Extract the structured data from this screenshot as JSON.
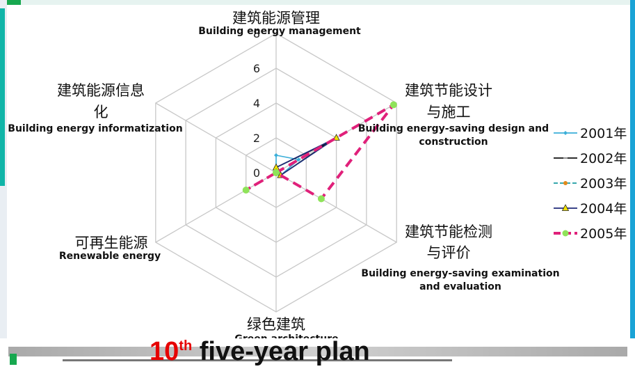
{
  "chart_data": {
    "type": "radar",
    "categories": [
      {
        "cn": "建筑能源管理",
        "en": [
          "Building energy management"
        ]
      },
      {
        "cn": [
          "建筑节能设计",
          "与施工"
        ],
        "en": [
          "Building energy-saving design and",
          "construction"
        ]
      },
      {
        "cn": [
          "建筑节能检测",
          "与评价"
        ],
        "en": [
          "Building energy-saving examination",
          "and evaluation"
        ]
      },
      {
        "cn": "绿色建筑",
        "en": [
          "Green architecture"
        ]
      },
      {
        "cn": "可再生能源",
        "en": [
          "Renewable energy"
        ]
      },
      {
        "cn": [
          "建筑能源信息",
          "化"
        ],
        "en": [
          "Building energy informatization"
        ]
      }
    ],
    "r_ticks": [
      "0",
      "2",
      "4",
      "6",
      "8"
    ],
    "r_range": [
      0,
      8
    ],
    "series": [
      {
        "name": "2001年",
        "color": "#3aaed8",
        "dash": "solid",
        "marker": "diamond",
        "values": [
          1,
          1.5,
          0.3,
          0,
          0,
          0
        ]
      },
      {
        "name": "2002年",
        "color": "#111111",
        "dash": "solid",
        "marker": "dash",
        "values": [
          0.3,
          3.5,
          0.3,
          0,
          0,
          0
        ]
      },
      {
        "name": "2003年",
        "color": "#1a9ba0",
        "dash": "dashed",
        "marker": "circle",
        "values": [
          0.3,
          4,
          0.3,
          0,
          0,
          0
        ]
      },
      {
        "name": "2004年",
        "color": "#1f2a78",
        "dash": "solid",
        "marker": "triangle",
        "values": [
          0.3,
          4,
          0.3,
          0,
          0,
          0
        ]
      },
      {
        "name": "2005年",
        "color": "#e0207a",
        "dash": "dashed",
        "marker": "dot",
        "values": [
          0,
          7.8,
          3,
          0,
          2,
          0
        ]
      }
    ],
    "legend": "right",
    "grid": true
  },
  "footer": {
    "number": "10",
    "superscript": "th",
    "text": " five-year plan"
  }
}
